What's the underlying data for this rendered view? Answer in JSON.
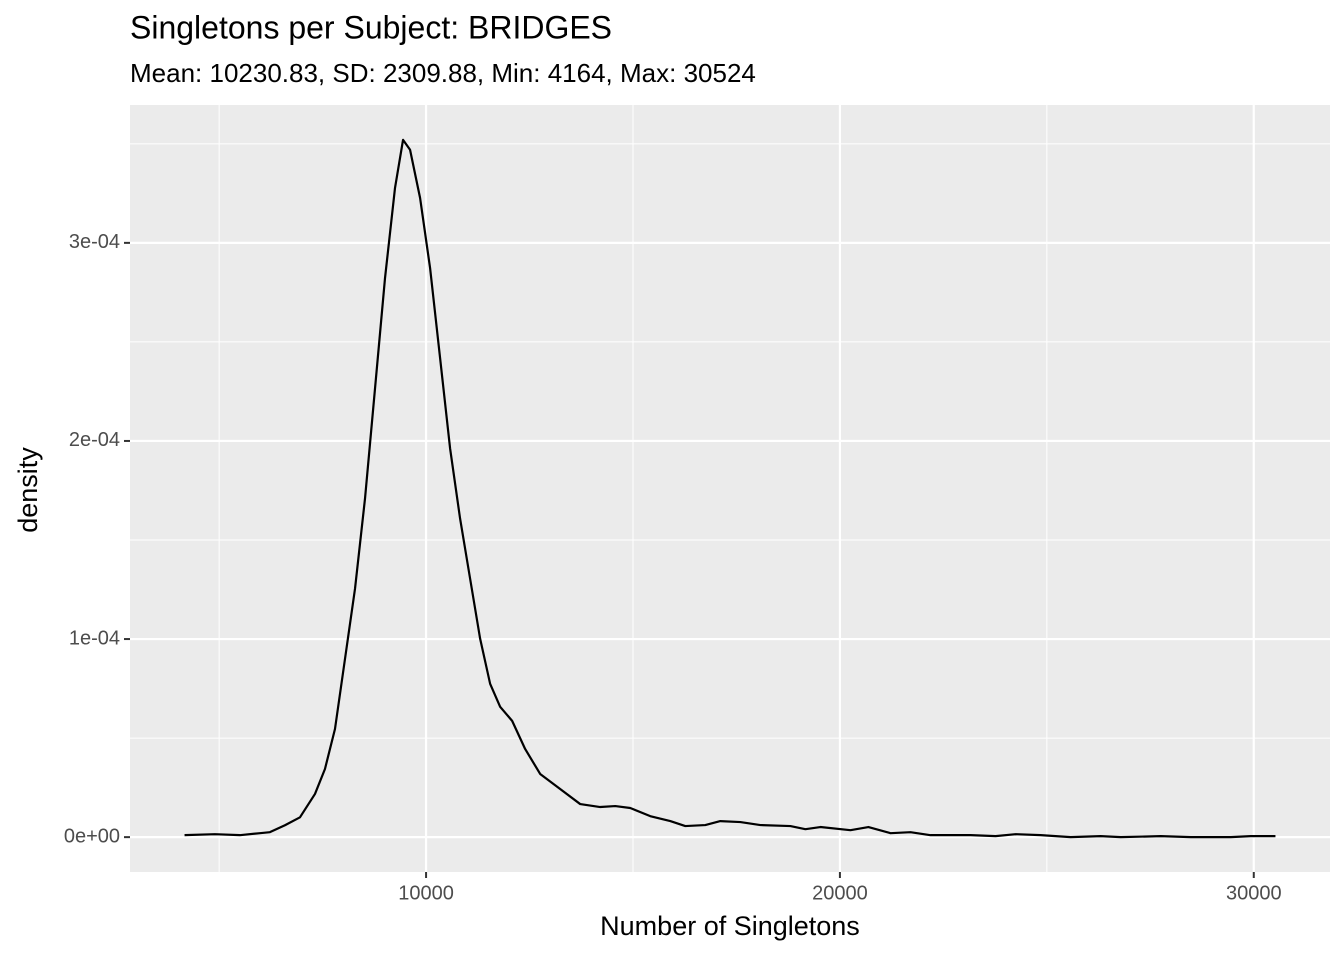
{
  "chart_data": {
    "type": "line",
    "title": "Singletons per Subject: BRIDGES",
    "subtitle": "Mean: 10230.83, SD: 2309.88, Min: 4164, Max: 30524",
    "x_label": "Number of Singletons",
    "y_label": "density",
    "x": [
      4164,
      4897,
      5500,
      5985,
      6227,
      6590,
      6953,
      7316,
      7557,
      7799,
      8041,
      8283,
      8525,
      8767,
      9008,
      9250,
      9444,
      9613,
      9855,
      10097,
      10339,
      10580,
      10822,
      11064,
      11306,
      11548,
      11790,
      12080,
      12394,
      12757,
      13240,
      13724,
      14208,
      14571,
      14933,
      15417,
      15901,
      16264,
      16747,
      17110,
      17594,
      18077,
      18803,
      19166,
      19528,
      20254,
      20689,
      21221,
      21705,
      22189,
      23156,
      23761,
      24244,
      24849,
      25574,
      26300,
      26784,
      27751,
      28477,
      29444,
      29927,
      30524
    ],
    "series": [
      {
        "color": "#000000",
        "values": [
          1e-06,
          1.5e-06,
          1e-06,
          2e-06,
          2.5e-06,
          6e-06,
          1e-05,
          2.18e-05,
          3.44e-05,
          5.46e-05,
          9e-05,
          0.0001254,
          0.000171,
          0.0002266,
          0.0002822,
          0.0003278,
          0.000352,
          0.000347,
          0.0003227,
          0.0002873,
          0.0002418,
          0.0001963,
          0.0001608,
          0.0001305,
          0.0001002,
          7.74e-05,
          6.58e-05,
          5.87e-05,
          4.45e-05,
          3.19e-05,
          2.43e-05,
          1.67e-05,
          1.52e-05,
          1.57e-05,
          1.47e-05,
          1.06e-05,
          8.1e-06,
          5.6e-06,
          6.1e-06,
          8.1e-06,
          7.6e-06,
          6.1e-06,
          5.6e-06,
          4e-06,
          5.1e-06,
          3.5e-06,
          5.1e-06,
          2e-06,
          2.5e-06,
          1e-06,
          1e-06,
          5e-07,
          1.5e-06,
          1e-06,
          0,
          5e-07,
          0,
          5e-07,
          0,
          0,
          5e-07,
          5e-07
        ]
      }
    ],
    "xlim": [
      2846,
      31842
    ],
    "ylim": [
      -1.76e-05,
      0.0003696
    ],
    "xticks": [
      10000,
      20000,
      30000
    ],
    "yticks": [
      {
        "value": 0,
        "label": "0e+00"
      },
      {
        "value": 0.0001,
        "label": "1e-04"
      },
      {
        "value": 0.0002,
        "label": "2e-04"
      },
      {
        "value": 0.0003,
        "label": "3e-04"
      }
    ],
    "minor_xgrid": [
      5000,
      15000,
      25000
    ],
    "minor_ygrid": [
      5e-05,
      0.00015,
      0.00025,
      0.00035
    ],
    "grid": true
  }
}
